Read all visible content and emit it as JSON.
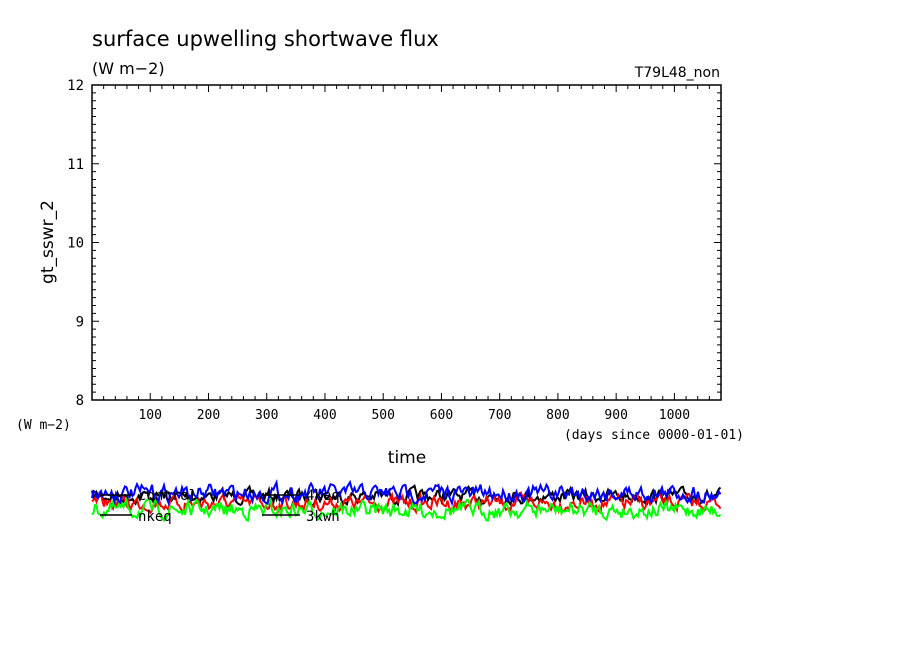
{
  "chart_data": {
    "type": "line",
    "title": "surface upwelling shortwave flux",
    "units": "(W m−2)",
    "run_label": "T79L48_non",
    "ylabel": "gt_sswr_2",
    "y_units": "(W m−2)",
    "xlabel": "time",
    "x_units": "(days since 0000-01-01)",
    "xlim": [
      0,
      1080
    ],
    "ylim": [
      8,
      12
    ],
    "x_ticks": [
      100,
      200,
      300,
      400,
      500,
      600,
      700,
      800,
      900,
      1000
    ],
    "y_ticks": [
      8,
      9,
      10,
      11,
      12
    ],
    "legend": [
      "control",
      "nkeq",
      "4keq",
      "3kwh"
    ],
    "series": [
      {
        "name": "control",
        "color": "#000000"
      },
      {
        "name": "nkeq",
        "color": "#ff0000"
      },
      {
        "name": "4keq",
        "color": "#00ff00"
      },
      {
        "name": "3kwh",
        "color": "#0000ff"
      }
    ]
  }
}
